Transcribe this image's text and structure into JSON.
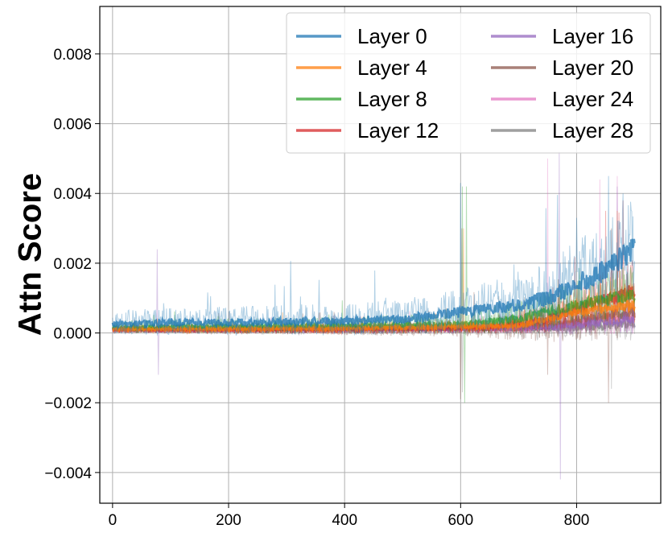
{
  "chart_data": {
    "type": "line",
    "title": "",
    "xlabel": "",
    "ylabel": "Attn Score",
    "xlim": [
      -22,
      945
    ],
    "ylim": [
      -0.00488,
      0.00936
    ],
    "xticks": [
      0,
      200,
      400,
      600,
      800
    ],
    "xtick_labels": [
      "0",
      "200",
      "400",
      "600",
      "800"
    ],
    "yticks": [
      -0.004,
      -0.002,
      0.0,
      0.002,
      0.004,
      0.006,
      0.008
    ],
    "ytick_labels": [
      "−0.004",
      "−0.002",
      "0.000",
      "0.002",
      "0.004",
      "0.006",
      "0.008"
    ],
    "grid": true,
    "legend": {
      "placement": "top-right",
      "columns": 2
    },
    "n_points": 901,
    "note_render": "Each series: thin translucent raw line plus thicker smoothed line",
    "series": [
      {
        "name": "Layer 0",
        "color": "#1f77b4",
        "smoothed_mean_profile": [
          {
            "x": 0,
            "y": 0.00025
          },
          {
            "x": 100,
            "y": 0.0003
          },
          {
            "x": 200,
            "y": 0.0003
          },
          {
            "x": 300,
            "y": 0.00032
          },
          {
            "x": 400,
            "y": 0.00035
          },
          {
            "x": 500,
            "y": 0.0004
          },
          {
            "x": 550,
            "y": 0.0005
          },
          {
            "x": 600,
            "y": 0.0006
          },
          {
            "x": 650,
            "y": 0.0007
          },
          {
            "x": 700,
            "y": 0.0008
          },
          {
            "x": 750,
            "y": 0.001
          },
          {
            "x": 800,
            "y": 0.0014
          },
          {
            "x": 850,
            "y": 0.0018
          },
          {
            "x": 880,
            "y": 0.0022
          },
          {
            "x": 900,
            "y": 0.0024
          }
        ],
        "noise_amplitude_profile": [
          {
            "x": 0,
            "y": 0.00035
          },
          {
            "x": 500,
            "y": 0.0005
          },
          {
            "x": 700,
            "y": 0.0008
          },
          {
            "x": 900,
            "y": 0.0015
          }
        ],
        "spikes": [
          {
            "x": 600,
            "y": 0.0043
          },
          {
            "x": 800,
            "y": 0.0033
          },
          {
            "x": 855,
            "y": 0.0045
          },
          {
            "x": 880,
            "y": 0.004
          }
        ]
      },
      {
        "name": "Layer 4",
        "color": "#ff7f0e",
        "smoothed_mean_profile": [
          {
            "x": 0,
            "y": 0.0001
          },
          {
            "x": 400,
            "y": 0.00012
          },
          {
            "x": 700,
            "y": 0.0002
          },
          {
            "x": 800,
            "y": 0.0006
          },
          {
            "x": 900,
            "y": 0.0008
          }
        ],
        "noise_amplitude_profile": [
          {
            "x": 0,
            "y": 0.00012
          },
          {
            "x": 700,
            "y": 0.0002
          },
          {
            "x": 900,
            "y": 0.0006
          }
        ],
        "spikes": [
          {
            "x": 605,
            "y": 0.003
          },
          {
            "x": 870,
            "y": 0.0035
          }
        ]
      },
      {
        "name": "Layer 8",
        "color": "#2ca02c",
        "smoothed_mean_profile": [
          {
            "x": 0,
            "y": 0.00015
          },
          {
            "x": 200,
            "y": 0.00018
          },
          {
            "x": 400,
            "y": 0.0002
          },
          {
            "x": 600,
            "y": 0.00025
          },
          {
            "x": 700,
            "y": 0.0004
          },
          {
            "x": 800,
            "y": 0.0008
          },
          {
            "x": 900,
            "y": 0.0011
          }
        ],
        "noise_amplitude_profile": [
          {
            "x": 0,
            "y": 0.00018
          },
          {
            "x": 600,
            "y": 0.0003
          },
          {
            "x": 900,
            "y": 0.0008
          }
        ],
        "spikes": [
          {
            "x": 603,
            "y": 0.0042
          },
          {
            "x": 607,
            "y": -0.002
          },
          {
            "x": 610,
            "y": 0.0042
          }
        ]
      },
      {
        "name": "Layer 12",
        "color": "#d62728",
        "smoothed_mean_profile": [
          {
            "x": 0,
            "y": 8e-05
          },
          {
            "x": 400,
            "y": 0.0001
          },
          {
            "x": 650,
            "y": 0.00015
          },
          {
            "x": 750,
            "y": 0.0004
          },
          {
            "x": 820,
            "y": 0.0008
          },
          {
            "x": 900,
            "y": 0.0012
          }
        ],
        "noise_amplitude_profile": [
          {
            "x": 0,
            "y": 0.0001
          },
          {
            "x": 650,
            "y": 0.00018
          },
          {
            "x": 900,
            "y": 0.0009
          }
        ],
        "spikes": [
          {
            "x": 850,
            "y": 0.0035
          },
          {
            "x": 880,
            "y": 0.0038
          }
        ]
      },
      {
        "name": "Layer 16",
        "color": "#9467bd",
        "smoothed_mean_profile": [
          {
            "x": 0,
            "y": 8e-05
          },
          {
            "x": 500,
            "y": 0.0001
          },
          {
            "x": 750,
            "y": 0.00015
          },
          {
            "x": 900,
            "y": 0.0004
          }
        ],
        "noise_amplitude_profile": [
          {
            "x": 0,
            "y": 8e-05
          },
          {
            "x": 700,
            "y": 0.00015
          },
          {
            "x": 900,
            "y": 0.0005
          }
        ],
        "spikes": [
          {
            "x": 77,
            "y": 0.0024
          },
          {
            "x": 79,
            "y": -0.0012
          },
          {
            "x": 770,
            "y": 0.0052
          },
          {
            "x": 772,
            "y": -0.0042
          },
          {
            "x": 870,
            "y": 0.0042
          }
        ]
      },
      {
        "name": "Layer 20",
        "color": "#8c564b",
        "smoothed_mean_profile": [
          {
            "x": 0,
            "y": 0.0001
          },
          {
            "x": 600,
            "y": 0.00012
          },
          {
            "x": 750,
            "y": 0.0002
          },
          {
            "x": 900,
            "y": 0.0006
          }
        ],
        "noise_amplitude_profile": [
          {
            "x": 0,
            "y": 0.00012
          },
          {
            "x": 600,
            "y": 0.00025
          },
          {
            "x": 900,
            "y": 0.0008
          }
        ],
        "spikes": [
          {
            "x": 600,
            "y": -0.0019
          },
          {
            "x": 602,
            "y": 0.003
          },
          {
            "x": 750,
            "y": -0.0012
          },
          {
            "x": 855,
            "y": -0.002
          },
          {
            "x": 860,
            "y": 0.003
          }
        ]
      },
      {
        "name": "Layer 24",
        "color": "#e377c2",
        "smoothed_mean_profile": [
          {
            "x": 0,
            "y": 8e-05
          },
          {
            "x": 700,
            "y": 0.00012
          },
          {
            "x": 800,
            "y": 0.0003
          },
          {
            "x": 900,
            "y": 0.0005
          }
        ],
        "noise_amplitude_profile": [
          {
            "x": 0,
            "y": 8e-05
          },
          {
            "x": 700,
            "y": 0.00015
          },
          {
            "x": 900,
            "y": 0.0006
          }
        ],
        "spikes": [
          {
            "x": 750,
            "y": 0.005
          },
          {
            "x": 840,
            "y": 0.0044
          },
          {
            "x": 870,
            "y": 0.0045
          }
        ]
      },
      {
        "name": "Layer 28",
        "color": "#7f7f7f",
        "smoothed_mean_profile": [
          {
            "x": 0,
            "y": 8e-05
          },
          {
            "x": 600,
            "y": 0.0001
          },
          {
            "x": 800,
            "y": 0.00015
          },
          {
            "x": 900,
            "y": 0.0003
          }
        ],
        "noise_amplitude_profile": [
          {
            "x": 0,
            "y": 0.0001
          },
          {
            "x": 600,
            "y": 0.0002
          },
          {
            "x": 900,
            "y": 0.0006
          }
        ],
        "spikes": [
          {
            "x": 603,
            "y": -0.0017
          },
          {
            "x": 860,
            "y": -0.0016
          }
        ]
      }
    ]
  }
}
